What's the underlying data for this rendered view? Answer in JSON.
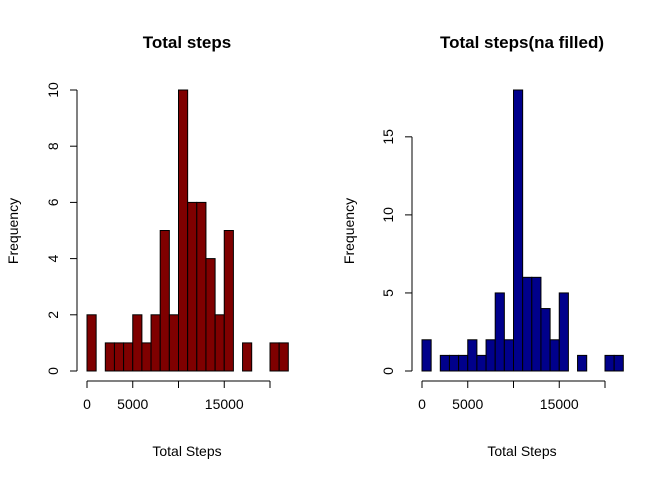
{
  "chart_data": [
    {
      "type": "bar",
      "title": "Total steps",
      "xlabel": "Total Steps",
      "ylabel": "Frequency",
      "bar_color": "#7f0000",
      "bin_width": 1000,
      "x_start": 0,
      "values": [
        2,
        0,
        1,
        1,
        1,
        2,
        1,
        2,
        5,
        2,
        10,
        6,
        6,
        4,
        2,
        5,
        0,
        1,
        0,
        0,
        1,
        1
      ],
      "xticks": [
        0,
        5000,
        15000
      ],
      "xtick_labels": [
        "0",
        "5000",
        "15000"
      ],
      "x_axis_range": [
        0,
        20000
      ],
      "yticks": [
        0,
        2,
        4,
        6,
        8,
        10
      ],
      "ytick_labels": [
        "0",
        "2",
        "4",
        "6",
        "8",
        "10"
      ],
      "ylim": [
        0,
        10
      ]
    },
    {
      "type": "bar",
      "title": "Total steps(na filled)",
      "xlabel": "Total Steps",
      "ylabel": "Frequency",
      "bar_color": "#00008b",
      "bin_width": 1000,
      "x_start": 0,
      "values": [
        2,
        0,
        1,
        1,
        1,
        2,
        1,
        2,
        5,
        2,
        18,
        6,
        6,
        4,
        2,
        5,
        0,
        1,
        0,
        0,
        1,
        1
      ],
      "xticks": [
        0,
        5000,
        15000
      ],
      "xtick_labels": [
        "0",
        "5000",
        "15000"
      ],
      "x_axis_range": [
        0,
        20000
      ],
      "yticks": [
        0,
        5,
        10,
        15
      ],
      "ytick_labels": [
        "0",
        "5",
        "10",
        "15"
      ],
      "ylim": [
        0,
        18
      ]
    }
  ]
}
